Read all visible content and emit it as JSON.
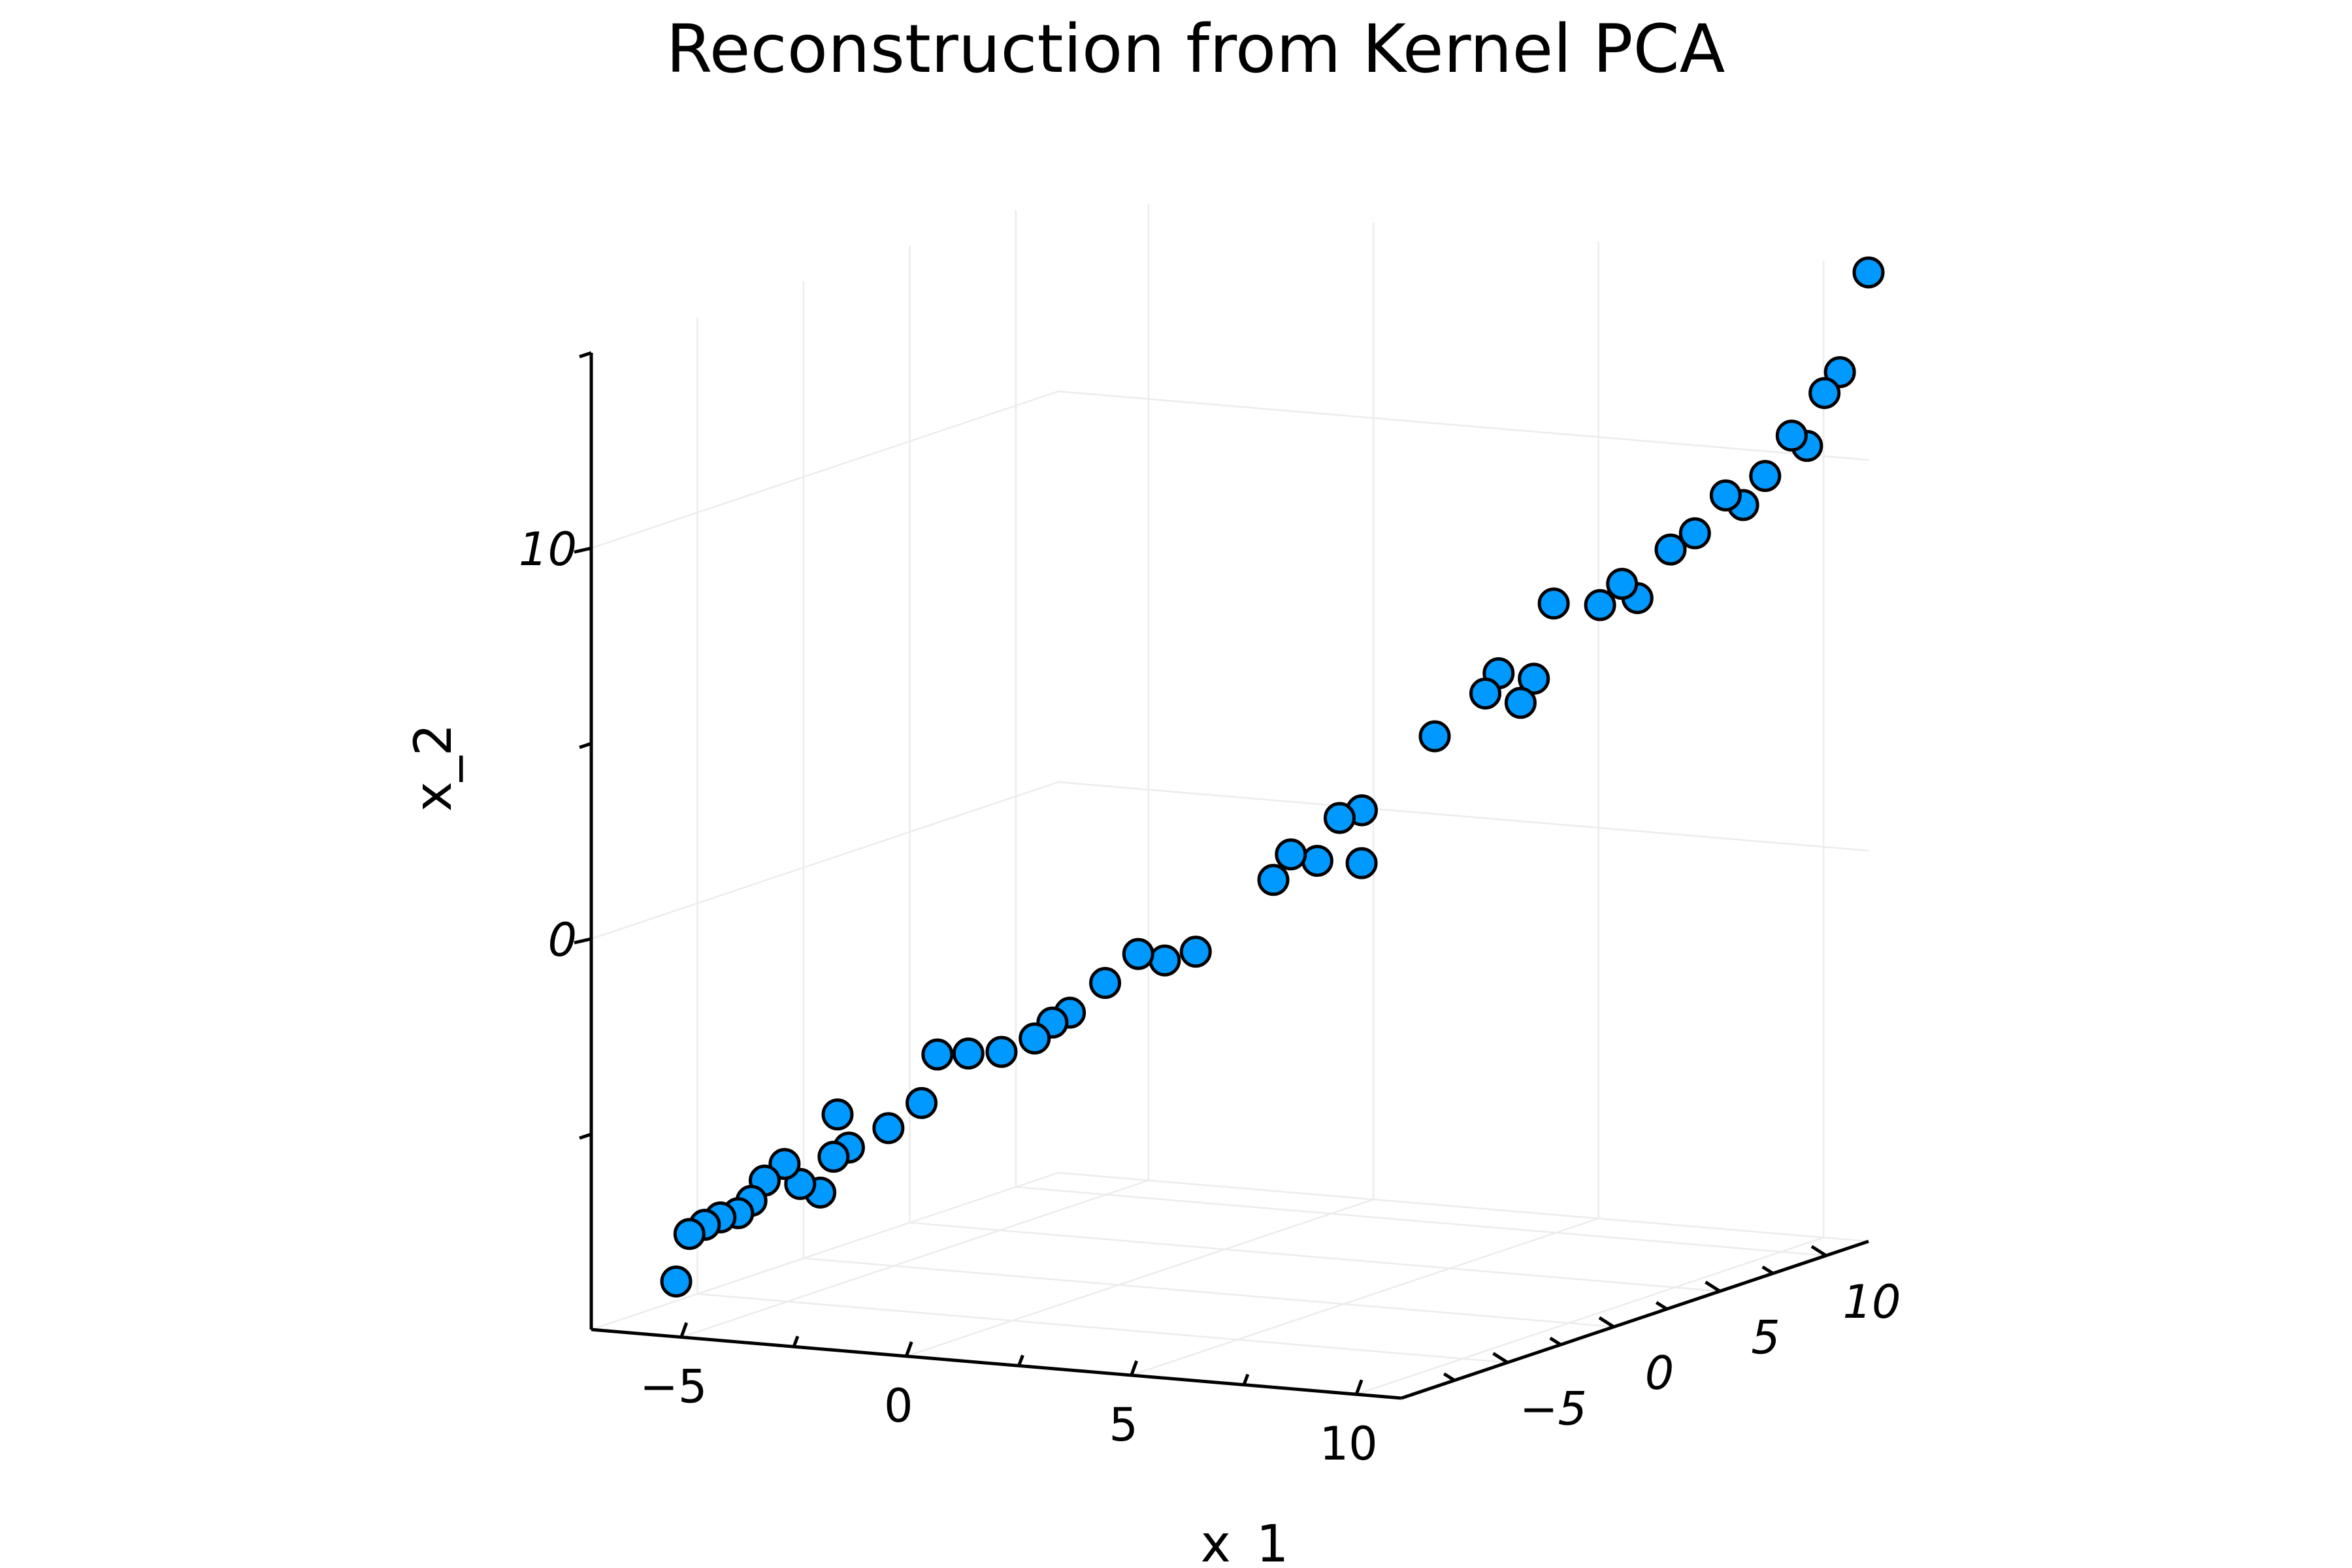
{
  "chart_data": {
    "type": "scatter",
    "title": "Reconstruction from Kernel PCA",
    "xlabel": "x_1",
    "ylabel": "x_2",
    "zlabel": "",
    "x_ticks": [
      "−5",
      "0",
      "5",
      "10"
    ],
    "y_ticks": [
      "0",
      "10"
    ],
    "z_ticks": [
      "−5",
      "0",
      "5",
      "10"
    ],
    "xlim": [
      -7,
      11
    ],
    "ylim": [
      -10,
      15
    ],
    "zlim": [
      -10,
      12
    ],
    "grid": true,
    "legend": "none",
    "point_color": "#0099ff",
    "points": [
      {
        "x": -7.0,
        "z": -6.0,
        "y": -9.5
      },
      {
        "x": -6.8,
        "z": -5.8,
        "y": -8.3
      },
      {
        "x": -6.6,
        "z": -5.5,
        "y": -8.1
      },
      {
        "x": -6.3,
        "z": -5.4,
        "y": -7.9
      },
      {
        "x": -6.0,
        "z": -5.2,
        "y": -7.8
      },
      {
        "x": -5.8,
        "z": -5.0,
        "y": -7.5
      },
      {
        "x": -5.6,
        "z": -4.8,
        "y": -7.0
      },
      {
        "x": -5.3,
        "z": -4.5,
        "y": -6.6
      },
      {
        "x": -5.0,
        "z": -4.4,
        "y": -7.1
      },
      {
        "x": -4.6,
        "z": -4.3,
        "y": -7.3
      },
      {
        "x": -4.4,
        "z": -4.1,
        "y": -6.4
      },
      {
        "x": -4.2,
        "z": -3.8,
        "y": -6.2
      },
      {
        "x": -4.5,
        "z": -3.7,
        "y": -5.4
      },
      {
        "x": -3.7,
        "z": -3.0,
        "y": -5.8
      },
      {
        "x": -3.2,
        "z": -2.5,
        "y": -5.2
      },
      {
        "x": -2.8,
        "z": -2.6,
        "y": -3.9
      },
      {
        "x": -2.3,
        "z": -2.2,
        "y": -3.9
      },
      {
        "x": -1.8,
        "z": -1.7,
        "y": -3.9
      },
      {
        "x": -1.3,
        "z": -1.2,
        "y": -3.6
      },
      {
        "x": -1.0,
        "z": -1.0,
        "y": -3.2
      },
      {
        "x": -0.8,
        "z": -0.6,
        "y": -3.0
      },
      {
        "x": -0.3,
        "z": 0.0,
        "y": -2.3
      },
      {
        "x": 0.2,
        "z": 0.5,
        "y": -1.6
      },
      {
        "x": 0.6,
        "z": 0.9,
        "y": -1.8
      },
      {
        "x": 1.1,
        "z": 1.3,
        "y": -1.6
      },
      {
        "x": 2.4,
        "z": 2.2,
        "y": 0.2
      },
      {
        "x": 2.6,
        "z": 2.6,
        "y": 0.8
      },
      {
        "x": 3.0,
        "z": 3.0,
        "y": 0.6
      },
      {
        "x": 3.4,
        "z": 3.2,
        "y": 1.7
      },
      {
        "x": 3.7,
        "z": 3.6,
        "y": 0.5
      },
      {
        "x": 3.8,
        "z": 3.4,
        "y": 1.9
      },
      {
        "x": 4.9,
        "z": 4.5,
        "y": 3.7
      },
      {
        "x": 5.6,
        "z": 5.4,
        "y": 4.7
      },
      {
        "x": 5.8,
        "z": 5.6,
        "y": 5.2
      },
      {
        "x": 6.1,
        "z": 6.0,
        "y": 4.4
      },
      {
        "x": 6.3,
        "z": 6.2,
        "y": 5.0
      },
      {
        "x": 6.6,
        "z": 6.5,
        "y": 6.9
      },
      {
        "x": 7.3,
        "z": 7.2,
        "y": 6.8
      },
      {
        "x": 7.6,
        "z": 7.6,
        "y": 7.3
      },
      {
        "x": 7.8,
        "z": 7.9,
        "y": 6.9
      },
      {
        "x": 8.3,
        "z": 8.4,
        "y": 8.1
      },
      {
        "x": 8.7,
        "z": 8.7,
        "y": 8.5
      },
      {
        "x": 9.1,
        "z": 9.3,
        "y": 9.4
      },
      {
        "x": 9.3,
        "z": 9.7,
        "y": 9.1
      },
      {
        "x": 9.6,
        "z": 10.1,
        "y": 9.8
      },
      {
        "x": 10.0,
        "z": 10.5,
        "y": 10.8
      },
      {
        "x": 10.2,
        "z": 10.8,
        "y": 10.5
      },
      {
        "x": 10.4,
        "z": 11.2,
        "y": 11.8
      },
      {
        "x": 10.6,
        "z": 11.5,
        "y": 12.3
      },
      {
        "x": 11.0,
        "z": 12.0,
        "y": 14.8
      }
    ]
  }
}
